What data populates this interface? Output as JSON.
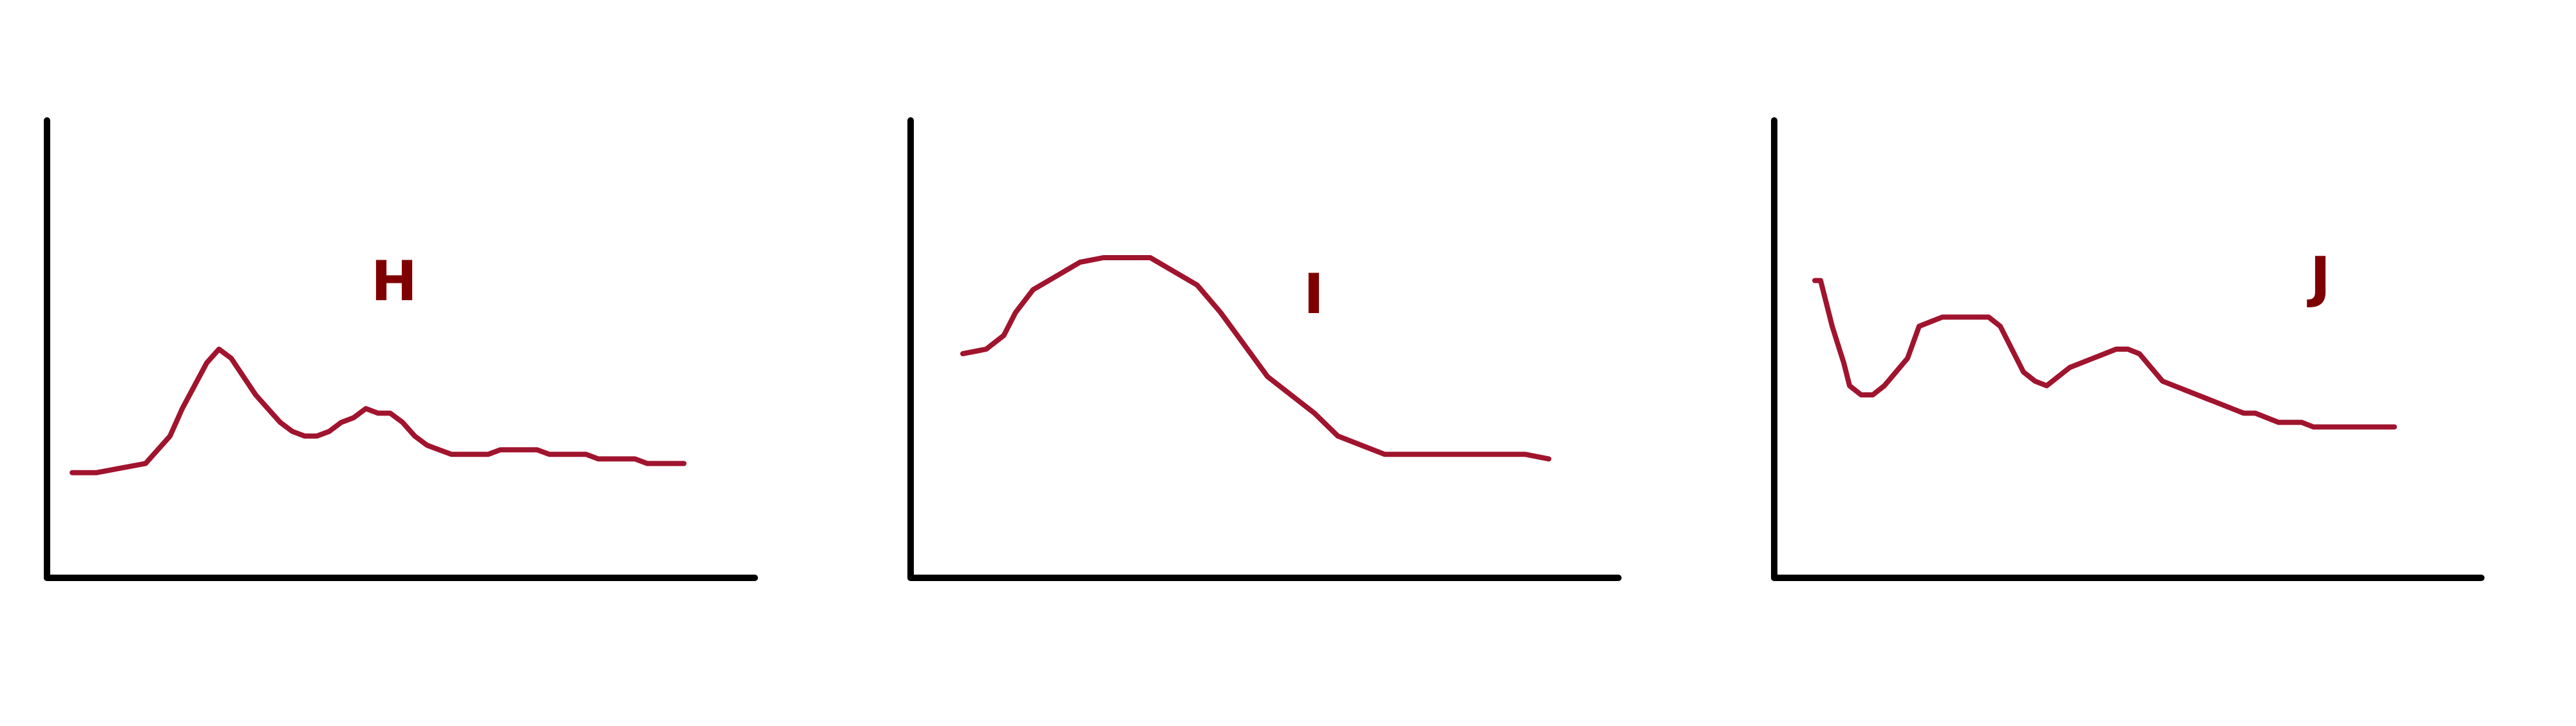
{
  "colors": {
    "axis": "#000000",
    "series": "#A0142E",
    "label": "#7F0000",
    "background": "#FFFFFF"
  },
  "chart_data": [
    {
      "type": "line",
      "title": "",
      "xlabel": "",
      "ylabel": "",
      "xlim": [
        0,
        100
      ],
      "ylim": [
        0,
        100
      ],
      "grid": false,
      "series": [
        {
          "label": "H",
          "x": [
            0,
            4,
            8,
            12,
            14,
            16,
            18,
            20,
            22,
            24,
            26,
            28,
            30,
            32,
            34,
            36,
            38,
            40,
            42,
            44,
            46,
            48,
            50,
            52,
            54,
            56,
            58,
            60,
            62,
            64,
            66,
            68,
            70,
            72,
            74,
            76,
            78,
            80,
            82,
            84,
            86,
            88,
            90,
            92,
            94,
            96,
            98,
            100
          ],
          "y": [
            23,
            23,
            24,
            25,
            28,
            31,
            37,
            42,
            47,
            50,
            48,
            44,
            40,
            37,
            34,
            32,
            31,
            31,
            32,
            34,
            35,
            37,
            36,
            36,
            34,
            31,
            29,
            28,
            27,
            27,
            27,
            27,
            28,
            28,
            28,
            28,
            27,
            27,
            27,
            27,
            26,
            26,
            26,
            26,
            25,
            25,
            25,
            25
          ]
        }
      ]
    },
    {
      "type": "line",
      "title": "",
      "xlabel": "",
      "ylabel": "",
      "xlim": [
        0,
        100
      ],
      "ylim": [
        0,
        100
      ],
      "grid": false,
      "series": [
        {
          "label": "I",
          "x": [
            0,
            4,
            7,
            9,
            12,
            16,
            20,
            24,
            28,
            32,
            36,
            40,
            44,
            48,
            52,
            56,
            60,
            64,
            68,
            72,
            76,
            80,
            84,
            88,
            92,
            96,
            100
          ],
          "y": [
            49,
            50,
            53,
            58,
            63,
            66,
            69,
            70,
            70,
            70,
            67,
            64,
            58,
            51,
            44,
            40,
            36,
            31,
            29,
            27,
            27,
            27,
            27,
            27,
            27,
            27,
            26
          ]
        }
      ]
    },
    {
      "type": "line",
      "title": "",
      "xlabel": "",
      "ylabel": "",
      "xlim": [
        0,
        100
      ],
      "ylim": [
        0,
        100
      ],
      "grid": false,
      "series": [
        {
          "label": "J",
          "x": [
            0,
            1,
            2,
            3,
            4,
            5,
            6,
            8,
            10,
            12,
            14,
            16,
            18,
            20,
            22,
            24,
            26,
            28,
            30,
            32,
            34,
            36,
            38,
            40,
            42,
            44,
            46,
            48,
            50,
            52,
            54,
            56,
            58,
            60,
            62,
            64,
            66,
            68,
            70,
            72,
            74,
            76,
            78,
            80,
            82,
            84,
            86,
            88,
            90,
            92,
            94,
            96,
            98,
            100
          ],
          "y": [
            65,
            65,
            60,
            55,
            51,
            47,
            42,
            40,
            40,
            42,
            45,
            48,
            55,
            56,
            57,
            57,
            57,
            57,
            57,
            55,
            50,
            45,
            43,
            42,
            44,
            46,
            47,
            48,
            49,
            50,
            50,
            49,
            46,
            43,
            42,
            41,
            40,
            39,
            38,
            37,
            36,
            36,
            35,
            34,
            34,
            34,
            33,
            33,
            33,
            33,
            33,
            33,
            33,
            33
          ]
        }
      ]
    }
  ]
}
